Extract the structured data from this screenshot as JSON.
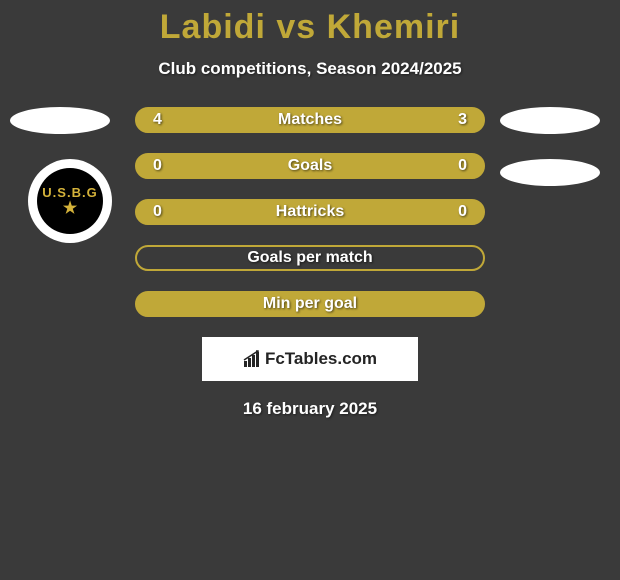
{
  "title": {
    "player1": "Labidi",
    "vs": "vs",
    "player2": "Khemiri",
    "color": "#c0a838"
  },
  "subtitle": "Club competitions, Season 2024/2025",
  "background_color": "#3a3a3a",
  "club_badge": {
    "text": "U.S.B.G",
    "bg": "#000000",
    "accent": "#d4b23a"
  },
  "bars": [
    {
      "left": "4",
      "label": "Matches",
      "right": "3",
      "fill": "#c0a838",
      "border": "#c0a838",
      "show_values": true
    },
    {
      "left": "0",
      "label": "Goals",
      "right": "0",
      "fill": "#c0a838",
      "border": "#c0a838",
      "show_values": true
    },
    {
      "left": "0",
      "label": "Hattricks",
      "right": "0",
      "fill": "#c0a838",
      "border": "#c0a838",
      "show_values": true
    },
    {
      "left": "",
      "label": "Goals per match",
      "right": "",
      "fill": "transparent",
      "border": "#c0a838",
      "show_values": false
    },
    {
      "left": "",
      "label": "Min per goal",
      "right": "",
      "fill": "#c0a838",
      "border": "#c0a838",
      "show_values": false
    }
  ],
  "bar_style": {
    "height": 26,
    "radius": 13,
    "label_color": "#ffffff",
    "label_fontsize": 16,
    "value_fontsize": 16
  },
  "avatar": {
    "color": "#ffffff"
  },
  "logo": {
    "text": "FcTables.com",
    "bg": "#ffffff",
    "color": "#242424"
  },
  "date": "16 february 2025"
}
